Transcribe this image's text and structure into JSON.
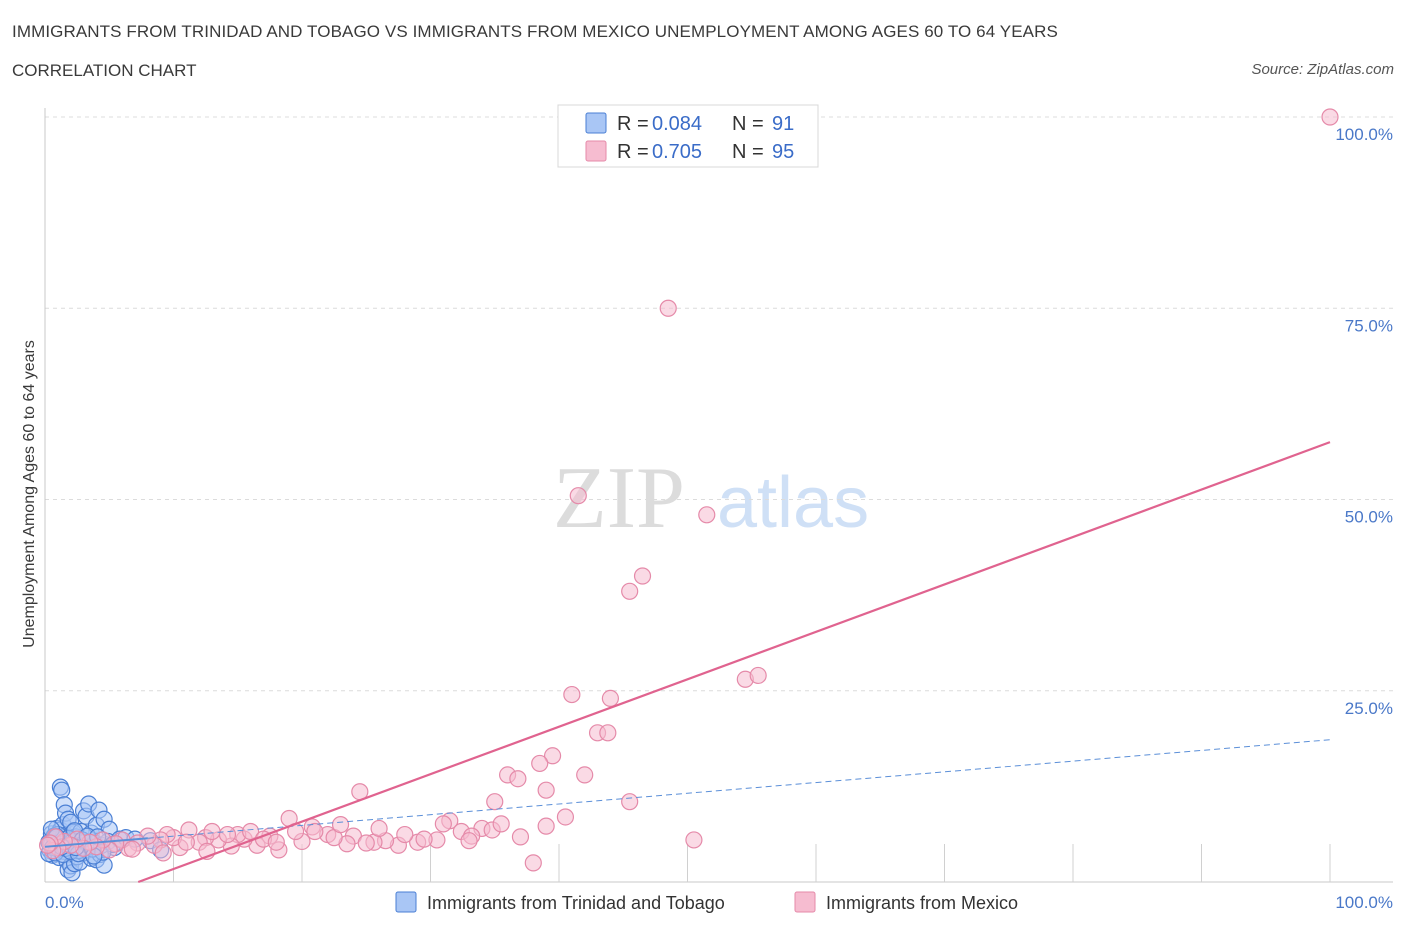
{
  "header": {
    "title": "IMMIGRANTS FROM TRINIDAD AND TOBAGO VS IMMIGRANTS FROM MEXICO UNEMPLOYMENT AMONG AGES 60 TO 64 YEARS",
    "subtitle": "CORRELATION CHART",
    "source": "Source: ZipAtlas.com"
  },
  "colors": {
    "blue_fill": "#a9c6f5",
    "blue_stroke": "#4a7fd4",
    "pink_fill": "#f6bcd0",
    "pink_stroke": "#e58aa9",
    "pink_line": "#e0638f",
    "blue_line": "#5b8fd8",
    "grid": "#dcdcdc"
  },
  "legend": {
    "r_label": "R =",
    "n_label": "N =",
    "entries": [
      {
        "r": "0.084",
        "n": "91"
      },
      {
        "r": "0.705",
        "n": "95"
      }
    ]
  },
  "watermark": {
    "zip": "ZIP",
    "atlas": "atlas"
  },
  "chart_data": {
    "type": "scatter",
    "title": "IMMIGRANTS FROM TRINIDAD AND TOBAGO VS IMMIGRANTS FROM MEXICO UNEMPLOYMENT AMONG AGES 60 TO 64 YEARS",
    "xlabel": "",
    "ylabel": "Unemployment Among Ages 60 to 64 years",
    "xlim": [
      0,
      100
    ],
    "ylim": [
      0,
      100
    ],
    "x_tick_labels": [
      "0.0%",
      "100.0%"
    ],
    "y_tick_labels": [
      "100.0%",
      "75.0%",
      "50.0%",
      "25.0%"
    ],
    "y_ticks": [
      100,
      75,
      50,
      25
    ],
    "series": [
      {
        "name": "Immigrants from Trinidad and Tobago",
        "r": 0.084,
        "n": 91,
        "trend": {
          "x0": 0,
          "y0": 4.6,
          "x1": 100,
          "y1": 18.6,
          "solid_until": 8
        },
        "points": [
          [
            0.3,
            5.2
          ],
          [
            0.4,
            4.1
          ],
          [
            0.5,
            6.3
          ],
          [
            0.6,
            3.5
          ],
          [
            0.7,
            5.8
          ],
          [
            0.8,
            4.6
          ],
          [
            0.9,
            7.0
          ],
          [
            1.0,
            3.9
          ],
          [
            1.1,
            5.5
          ],
          [
            1.2,
            6.8
          ],
          [
            0.3,
            3.7
          ],
          [
            0.5,
            4.9
          ],
          [
            0.7,
            6.0
          ],
          [
            0.9,
            4.4
          ],
          [
            1.1,
            3.2
          ],
          [
            1.3,
            5.1
          ],
          [
            1.4,
            7.5
          ],
          [
            1.5,
            4.0
          ],
          [
            1.6,
            6.1
          ],
          [
            1.7,
            5.3
          ],
          [
            1.2,
            12.4
          ],
          [
            1.3,
            12.0
          ],
          [
            1.5,
            10.1
          ],
          [
            1.6,
            9.0
          ],
          [
            1.8,
            8.2
          ],
          [
            2.0,
            7.8
          ],
          [
            2.2,
            6.5
          ],
          [
            2.4,
            5.9
          ],
          [
            2.6,
            4.8
          ],
          [
            2.8,
            6.6
          ],
          [
            3.0,
            9.3
          ],
          [
            3.2,
            8.6
          ],
          [
            3.4,
            10.2
          ],
          [
            3.6,
            6.4
          ],
          [
            3.8,
            5.0
          ],
          [
            4.0,
            7.4
          ],
          [
            4.2,
            9.4
          ],
          [
            4.6,
            8.2
          ],
          [
            5.0,
            6.9
          ],
          [
            5.4,
            4.5
          ],
          [
            1.7,
            2.8
          ],
          [
            1.8,
            1.6
          ],
          [
            2.0,
            2.1
          ],
          [
            2.1,
            1.2
          ],
          [
            2.3,
            2.4
          ],
          [
            2.5,
            3.3
          ],
          [
            2.7,
            2.6
          ],
          [
            3.0,
            3.8
          ],
          [
            3.3,
            4.2
          ],
          [
            3.6,
            3.1
          ],
          [
            4.0,
            2.9
          ],
          [
            4.3,
            3.6
          ],
          [
            4.6,
            2.2
          ],
          [
            0.8,
            5.6
          ],
          [
            1.0,
            4.3
          ],
          [
            1.4,
            5.9
          ],
          [
            1.9,
            4.7
          ],
          [
            2.2,
            5.4
          ],
          [
            2.6,
            4.1
          ],
          [
            3.1,
            5.2
          ],
          [
            3.5,
            4.6
          ],
          [
            3.9,
            5.1
          ],
          [
            4.4,
            4.8
          ],
          [
            4.9,
            5.3
          ],
          [
            5.3,
            4.9
          ],
          [
            5.8,
            5.6
          ],
          [
            6.3,
            5.8
          ],
          [
            7.0,
            5.6
          ],
          [
            8.2,
            5.4
          ],
          [
            9.0,
            4.2
          ],
          [
            0.4,
            5.0
          ],
          [
            0.6,
            4.5
          ],
          [
            0.8,
            3.8
          ],
          [
            1.0,
            6.2
          ],
          [
            1.2,
            4.9
          ],
          [
            1.4,
            3.6
          ],
          [
            1.6,
            4.4
          ],
          [
            1.8,
            5.7
          ],
          [
            2.0,
            4.0
          ],
          [
            2.3,
            6.7
          ],
          [
            2.6,
            3.7
          ],
          [
            2.9,
            5.5
          ],
          [
            3.3,
            6.0
          ],
          [
            3.7,
            4.3
          ],
          [
            4.1,
            5.9
          ],
          [
            4.5,
            3.9
          ],
          [
            0.5,
            6.9
          ],
          [
            0.9,
            5.9
          ],
          [
            1.3,
            4.6
          ],
          [
            2.4,
            4.5
          ],
          [
            3.8,
            3.4
          ]
        ]
      },
      {
        "name": "Immigrants from Mexico",
        "r": 0.705,
        "n": 95,
        "trend": {
          "x0": 0,
          "y0": -4.5,
          "x1": 100,
          "y1": 57.5
        },
        "points": [
          [
            100,
            100
          ],
          [
            48.5,
            75
          ],
          [
            41.5,
            50.5
          ],
          [
            51.5,
            48
          ],
          [
            46.5,
            40
          ],
          [
            45.5,
            38
          ],
          [
            54.5,
            26.5
          ],
          [
            55.5,
            27
          ],
          [
            41,
            24.5
          ],
          [
            44,
            24
          ],
          [
            43,
            19.5
          ],
          [
            43.8,
            19.5
          ],
          [
            39.5,
            16.5
          ],
          [
            38.5,
            15.5
          ],
          [
            42,
            14
          ],
          [
            36,
            14
          ],
          [
            36.8,
            13.5
          ],
          [
            39,
            12
          ],
          [
            24.5,
            11.8
          ],
          [
            35,
            10.5
          ],
          [
            45.5,
            10.5
          ],
          [
            40.5,
            8.5
          ],
          [
            19,
            8.3
          ],
          [
            31.5,
            8
          ],
          [
            31,
            7.6
          ],
          [
            39,
            7.3
          ],
          [
            34,
            7
          ],
          [
            34.8,
            6.8
          ],
          [
            32.4,
            6.6
          ],
          [
            33.2,
            6
          ],
          [
            24,
            6
          ],
          [
            50.5,
            5.5
          ],
          [
            38,
            2.5
          ],
          [
            30.5,
            5.5
          ],
          [
            29,
            5.2
          ],
          [
            27.5,
            4.8
          ],
          [
            26.5,
            5.4
          ],
          [
            25.6,
            5.2
          ],
          [
            23.5,
            5
          ],
          [
            22,
            6.2
          ],
          [
            20.8,
            7.2
          ],
          [
            20,
            5.3
          ],
          [
            19.5,
            6.6
          ],
          [
            18.2,
            4.2
          ],
          [
            17.5,
            6
          ],
          [
            16.5,
            4.8
          ],
          [
            15.5,
            5.6
          ],
          [
            15,
            6.2
          ],
          [
            14.5,
            4.7
          ],
          [
            13.5,
            5.5
          ],
          [
            12.5,
            5.8
          ],
          [
            12,
            5.2
          ],
          [
            11.2,
            6.8
          ],
          [
            10.5,
            4.5
          ],
          [
            10,
            5.8
          ],
          [
            9.5,
            6.2
          ],
          [
            9,
            5.5
          ],
          [
            8.5,
            4.8
          ],
          [
            8,
            6
          ],
          [
            7.2,
            5.1
          ],
          [
            6.5,
            4.4
          ],
          [
            6,
            5.5
          ],
          [
            5.5,
            5
          ],
          [
            5,
            4.2
          ],
          [
            4.5,
            5.5
          ],
          [
            4,
            4.6
          ],
          [
            3.5,
            5.2
          ],
          [
            3,
            4.4
          ],
          [
            2.5,
            5.6
          ],
          [
            2,
            4.8
          ],
          [
            1.5,
            5.3
          ],
          [
            1,
            4.5
          ],
          [
            0.8,
            5.9
          ],
          [
            0.6,
            4.1
          ],
          [
            0.4,
            5.1
          ],
          [
            0.2,
            4.8
          ],
          [
            13,
            6.6
          ],
          [
            14.2,
            6.2
          ],
          [
            16,
            6.6
          ],
          [
            17,
            5.6
          ],
          [
            18,
            5.2
          ],
          [
            21,
            6.6
          ],
          [
            22.5,
            5.8
          ],
          [
            23,
            7.5
          ],
          [
            25,
            5.1
          ],
          [
            26,
            7
          ],
          [
            28,
            6.2
          ],
          [
            29.5,
            5.6
          ],
          [
            33,
            5.4
          ],
          [
            35.5,
            7.6
          ],
          [
            37,
            5.9
          ],
          [
            12.6,
            4
          ],
          [
            9.2,
            3.8
          ],
          [
            11,
            5.2
          ],
          [
            6.8,
            4.3
          ]
        ]
      }
    ]
  }
}
